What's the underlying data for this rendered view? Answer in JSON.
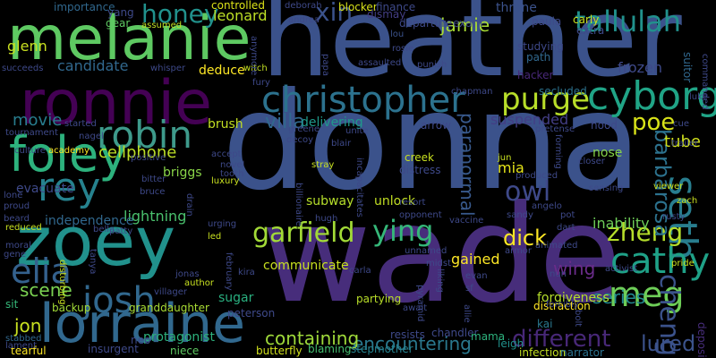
{
  "words": [
    {
      "id": "heather",
      "text": "heather",
      "color": "#3b528b"
    },
    {
      "id": "donna",
      "text": "donna",
      "color": "#3b528b"
    },
    {
      "id": "wade",
      "text": "wade",
      "color": "#472d7b"
    },
    {
      "id": "melanie",
      "text": "melanie",
      "color": "#5ec962"
    },
    {
      "id": "zoey",
      "text": "zoey",
      "color": "#21918c"
    },
    {
      "id": "ronnie",
      "text": "ronnie",
      "color": "#440154"
    },
    {
      "id": "lorraine",
      "text": "lorraine",
      "color": "#31688e"
    },
    {
      "id": "christopher",
      "text": "christopher",
      "color": "#2c728e"
    },
    {
      "id": "foley",
      "text": "foley",
      "color": "#2db27d"
    },
    {
      "id": "robin",
      "text": "robin",
      "color": "#3e9a8b"
    },
    {
      "id": "rey",
      "text": "rey",
      "color": "#26828e"
    },
    {
      "id": "cyborg",
      "text": "cyborg",
      "color": "#20a486"
    },
    {
      "id": "purge",
      "text": "purge",
      "color": "#b8de29"
    },
    {
      "id": "tallulah",
      "text": "tallulah",
      "color": "#21918c"
    },
    {
      "id": "seth",
      "text": "seth",
      "color": "#287d8e"
    },
    {
      "id": "cathy",
      "text": "cathy",
      "color": "#1fa187"
    },
    {
      "id": "meg",
      "text": "meg",
      "color": "#6ece58"
    },
    {
      "id": "cheng",
      "text": "cheng",
      "color": "#3b528b"
    },
    {
      "id": "zheng",
      "text": "zheng",
      "color": "#b5de2b"
    },
    {
      "id": "garfield",
      "text": "garfield",
      "color": "#a2da37"
    },
    {
      "id": "josh",
      "text": "josh",
      "color": "#31688e"
    },
    {
      "id": "ying",
      "text": "ying",
      "color": "#35b779"
    },
    {
      "id": "dick",
      "text": "dick",
      "color": "#fde725"
    },
    {
      "id": "different",
      "text": "different",
      "color": "#482878"
    },
    {
      "id": "honey",
      "text": "honey",
      "color": "#21918c"
    },
    {
      "id": "xin",
      "text": "xin",
      "color": "#3b528b"
    },
    {
      "id": "owl",
      "text": "owl",
      "color": "#3e4989"
    },
    {
      "id": "poe",
      "text": "poe",
      "color": "#d8e219"
    },
    {
      "id": "barbarosa",
      "text": "barbarosa",
      "color": "#2c728e"
    },
    {
      "id": "paranormal",
      "text": "paranormal",
      "color": "#38598c"
    },
    {
      "id": "jamie",
      "text": "jamie",
      "color": "#a8db34"
    },
    {
      "id": "encountering",
      "text": "encountering",
      "color": "#2a788e"
    },
    {
      "id": "containing",
      "text": "containing",
      "color": "#9fda3a"
    },
    {
      "id": "scene",
      "text": "scene",
      "color": "#7ad151"
    },
    {
      "id": "jon",
      "text": "jon",
      "color": "#c8e020"
    },
    {
      "id": "series",
      "text": "series",
      "color": "#23898e"
    },
    {
      "id": "lured",
      "text": "lured",
      "color": "#3b528b"
    },
    {
      "id": "wing",
      "text": "wing",
      "color": "#6a2c8a"
    },
    {
      "id": "elia",
      "text": "elia",
      "color": "#34618d"
    },
    {
      "id": "tube",
      "text": "tube",
      "color": "#d2e21b"
    },
    {
      "id": "candidate",
      "text": "candidate",
      "color": "#31688e"
    },
    {
      "id": "movie",
      "text": "movie",
      "color": "#287d8e"
    },
    {
      "id": "villa",
      "text": "villa",
      "color": "#31688e"
    },
    {
      "id": "suspended",
      "text": "suspended",
      "color": "#433e85"
    },
    {
      "id": "cellphone",
      "text": "cellphone",
      "color": "#bddf26"
    },
    {
      "id": "lightning",
      "text": "lightning",
      "color": "#4ac16d"
    },
    {
      "id": "subway",
      "text": "subway",
      "color": "#b5de2b"
    },
    {
      "id": "unlock",
      "text": "unlock",
      "color": "#c2df23"
    },
    {
      "id": "briggs",
      "text": "briggs",
      "color": "#89d548"
    },
    {
      "id": "evacuate",
      "text": "evacuate",
      "color": "#3e4989"
    },
    {
      "id": "independence",
      "text": "independence",
      "color": "#31688e"
    },
    {
      "id": "leonard",
      "text": "leonard",
      "color": "#bddf26"
    },
    {
      "id": "controlled",
      "text": "controlled",
      "color": "#dde318"
    },
    {
      "id": "deduce",
      "text": "deduce",
      "color": "#fde725"
    },
    {
      "id": "glenn",
      "text": "glenn",
      "color": "#c8e020"
    },
    {
      "id": "frozen",
      "text": "frozen",
      "color": "#3e4989"
    },
    {
      "id": "mia",
      "text": "mia",
      "color": "#e5e419"
    },
    {
      "id": "nose",
      "text": "nose",
      "color": "#86d549"
    },
    {
      "id": "delivering",
      "text": "delivering",
      "color": "#1f998a"
    },
    {
      "id": "brush",
      "text": "brush",
      "color": "#c2df23"
    },
    {
      "id": "inability",
      "text": "inability",
      "color": "#6ece58"
    },
    {
      "id": "communicate",
      "text": "communicate",
      "color": "#c8e020"
    },
    {
      "id": "sugar",
      "text": "sugar",
      "color": "#29af7f"
    },
    {
      "id": "backup",
      "text": "backup",
      "color": "#a2da37"
    },
    {
      "id": "granddaughter",
      "text": "granddaughter",
      "color": "#a8db34"
    },
    {
      "id": "peterson",
      "text": "peterson",
      "color": "#3e4989"
    },
    {
      "id": "partying",
      "text": "partying",
      "color": "#b8de29"
    },
    {
      "id": "gained",
      "text": "gained",
      "color": "#fde725"
    },
    {
      "id": "resists",
      "text": "resists",
      "color": "#3e4989"
    },
    {
      "id": "forgiveness",
      "text": "forgiveness",
      "color": "#b5de2b"
    },
    {
      "id": "distraction",
      "text": "distraction",
      "color": "#ffe725"
    },
    {
      "id": "protagonist",
      "text": "protagonist",
      "color": "#2db27d"
    },
    {
      "id": "butterfly",
      "text": "butterfly",
      "color": "#d0e11c"
    },
    {
      "id": "blaming",
      "text": "blaming",
      "color": "#44bf70"
    },
    {
      "id": "stepmother",
      "text": "stepmother",
      "color": "#26828e"
    },
    {
      "id": "tearful",
      "text": "tearful",
      "color": "#fde725"
    },
    {
      "id": "insurgent",
      "text": "insurgent",
      "color": "#3e4989"
    },
    {
      "id": "niece",
      "text": "niece",
      "color": "#5ec962"
    },
    {
      "id": "infection",
      "text": "infection",
      "color": "#c2df23"
    },
    {
      "id": "narrator",
      "text": "narrator",
      "color": "#2c728e"
    },
    {
      "id": "chandler",
      "text": "chandler",
      "color": "#3e4989"
    },
    {
      "id": "mama",
      "text": "mama",
      "color": "#2db27d"
    },
    {
      "id": "leigh",
      "text": "leigh",
      "color": "#21918c"
    },
    {
      "id": "kai",
      "text": "kai",
      "color": "#2a788e"
    },
    {
      "id": "deposit",
      "text": "deposit",
      "color": "#472d7b"
    },
    {
      "id": "lament",
      "text": "lament",
      "color": "#3e4989"
    },
    {
      "id": "stabbed",
      "text": "stabbed",
      "color": "#31688e"
    },
    {
      "id": "sit",
      "text": "sit",
      "color": "#35b779"
    },
    {
      "id": "neo",
      "text": "neo",
      "color": "#3e4989"
    },
    {
      "id": "importance",
      "text": "importance",
      "color": "#31688e"
    },
    {
      "id": "yang",
      "text": "yang",
      "color": "#3e4989"
    },
    {
      "id": "gear",
      "text": "gear",
      "color": "#5ec962"
    },
    {
      "id": "assumed",
      "text": "assumed",
      "color": "#c2df23"
    },
    {
      "id": "deborah",
      "text": "deborah",
      "color": "#3e4989"
    },
    {
      "id": "blocker",
      "text": "blocker",
      "color": "#d8e219"
    },
    {
      "id": "finance",
      "text": "finance",
      "color": "#3e4989"
    },
    {
      "id": "andrea",
      "text": "andrea",
      "color": "#3e4989"
    },
    {
      "id": "dismay",
      "text": "dismay",
      "color": "#433e85"
    },
    {
      "id": "throne",
      "text": "throne",
      "color": "#3b528b"
    },
    {
      "id": "lou",
      "text": "lou",
      "color": "#3b528b"
    },
    {
      "id": "paula",
      "text": "paula",
      "color": "#3e4989"
    },
    {
      "id": "carly",
      "text": "carly",
      "color": "#c8e020"
    },
    {
      "id": "rosie",
      "text": "rosie",
      "color": "#3e4989"
    },
    {
      "id": "departure",
      "text": "departure",
      "color": "#3e4989"
    },
    {
      "id": "exam",
      "text": "exam",
      "color": "#3e4989"
    },
    {
      "id": "extra",
      "text": "extra",
      "color": "#3e4989"
    },
    {
      "id": "studying",
      "text": "studying",
      "color": "#3e4989"
    },
    {
      "id": "path",
      "text": "path",
      "color": "#31688e"
    },
    {
      "id": "suitor",
      "text": "suitor",
      "color": "#31688e"
    },
    {
      "id": "commanded",
      "text": "commanded",
      "color": "#3e4989"
    },
    {
      "id": "luke",
      "text": "luke",
      "color": "#3e4989"
    },
    {
      "id": "succeeds",
      "text": "succeeds",
      "color": "#3e4989"
    },
    {
      "id": "whisper",
      "text": "whisper",
      "color": "#3e4989"
    },
    {
      "id": "witch",
      "text": "witch",
      "color": "#c2df23"
    },
    {
      "id": "papa",
      "text": "papa",
      "color": "#3e4989"
    },
    {
      "id": "assaulted",
      "text": "assaulted",
      "color": "#3e4989"
    },
    {
      "id": "punish",
      "text": "punish",
      "color": "#3e4989"
    },
    {
      "id": "hacker",
      "text": "hacker",
      "color": "#482878"
    },
    {
      "id": "secluded",
      "text": "secluded",
      "color": "#2c728e"
    },
    {
      "id": "fury",
      "text": "fury",
      "color": "#3e4989"
    },
    {
      "id": "chapman",
      "text": "chapman",
      "color": "#3e4989"
    },
    {
      "id": "started",
      "text": "started",
      "color": "#3e4989"
    },
    {
      "id": "tournament",
      "text": "tournament",
      "color": "#3e4989"
    },
    {
      "id": "nagel",
      "text": "nagel",
      "color": "#3e4989"
    },
    {
      "id": "culture",
      "text": "culture",
      "color": "#3e4989"
    },
    {
      "id": "academy",
      "text": "academy",
      "color": "#fde725"
    },
    {
      "id": "positive",
      "text": "positive",
      "color": "#3e4989"
    },
    {
      "id": "greene",
      "text": "greene",
      "color": "#3e4989"
    },
    {
      "id": "unite",
      "text": "unite",
      "color": "#3e4989"
    },
    {
      "id": "arrow",
      "text": "arrow",
      "color": "#3e4989"
    },
    {
      "id": "hood",
      "text": "hood",
      "color": "#3e4989"
    },
    {
      "id": "pretense",
      "text": "pretense",
      "color": "#3e4989"
    },
    {
      "id": "decoy",
      "text": "decoy",
      "color": "#3e4989"
    },
    {
      "id": "blair",
      "text": "blair",
      "color": "#3e4989"
    },
    {
      "id": "accept",
      "text": "accept",
      "color": "#3e4989"
    },
    {
      "id": "novel",
      "text": "novel",
      "color": "#3e4989"
    },
    {
      "id": "tooth",
      "text": "tooth",
      "color": "#3e4989"
    },
    {
      "id": "luxury",
      "text": "luxury",
      "color": "#c8e020"
    },
    {
      "id": "stray",
      "text": "stray",
      "color": "#c8e020"
    },
    {
      "id": "creek",
      "text": "creek",
      "color": "#c8e020"
    },
    {
      "id": "distress",
      "text": "distress",
      "color": "#3e4989"
    },
    {
      "id": "jun",
      "text": "jun",
      "color": "#c8e020"
    },
    {
      "id": "produced",
      "text": "produced",
      "color": "#3e4989"
    },
    {
      "id": "forming",
      "text": "forming",
      "color": "#3e4989"
    },
    {
      "id": "closer",
      "text": "closer",
      "color": "#3e4989"
    },
    {
      "id": "trailer",
      "text": "trailer",
      "color": "#3e4989"
    },
    {
      "id": "cue",
      "text": "cue",
      "color": "#3e4989"
    },
    {
      "id": "zach",
      "text": "zach",
      "color": "#c8e020"
    },
    {
      "id": "bitter",
      "text": "bitter",
      "color": "#3e4989"
    },
    {
      "id": "bruce",
      "text": "bruce",
      "color": "#3e4989"
    },
    {
      "id": "lone",
      "text": "lone",
      "color": "#3e4989"
    },
    {
      "id": "proud",
      "text": "proud",
      "color": "#3e4989"
    },
    {
      "id": "beard",
      "text": "beard",
      "color": "#3e4989"
    },
    {
      "id": "bella",
      "text": "bella",
      "color": "#3e4989"
    },
    {
      "id": "patty",
      "text": "patty",
      "color": "#3e4989"
    },
    {
      "id": "reduced",
      "text": "reduced",
      "color": "#c8e020"
    },
    {
      "id": "moral",
      "text": "moral",
      "color": "#3e4989"
    },
    {
      "id": "gene",
      "text": "gene",
      "color": "#3e4989"
    },
    {
      "id": "disturbing",
      "text": "disturbing",
      "color": "#c8e020"
    },
    {
      "id": "tanya",
      "text": "tanya",
      "color": "#3e4989"
    },
    {
      "id": "urging",
      "text": "urging",
      "color": "#3e4989"
    },
    {
      "id": "led",
      "text": "led",
      "color": "#c8e020"
    },
    {
      "id": "jonas",
      "text": "jonas",
      "color": "#3e4989"
    },
    {
      "id": "kira",
      "text": "kira",
      "color": "#3e4989"
    },
    {
      "id": "villager",
      "text": "villager",
      "color": "#3e4989"
    },
    {
      "id": "author",
      "text": "author",
      "color": "#c8e020"
    },
    {
      "id": "february",
      "text": "february",
      "color": "#3e4989"
    },
    {
      "id": "hugh",
      "text": "hugh",
      "color": "#3e4989"
    },
    {
      "id": "billionaire",
      "text": "billionaire",
      "color": "#3e4989"
    },
    {
      "id": "incapacitates",
      "text": "incapacitates",
      "color": "#3e4989"
    },
    {
      "id": "resort",
      "text": "resort",
      "color": "#3e4989"
    },
    {
      "id": "opponent",
      "text": "opponent",
      "color": "#3e4989"
    },
    {
      "id": "vaccine",
      "text": "vaccine",
      "color": "#3e4989"
    },
    {
      "id": "angelo",
      "text": "angelo",
      "color": "#3e4989"
    },
    {
      "id": "sandy",
      "text": "sandy",
      "color": "#3e4989"
    },
    {
      "id": "pot",
      "text": "pot",
      "color": "#3e4989"
    },
    {
      "id": "sensing",
      "text": "sensing",
      "color": "#3e4989"
    },
    {
      "id": "viewer",
      "text": "viewer",
      "color": "#c8e020"
    },
    {
      "id": "rusty",
      "text": "rusty",
      "color": "#3e4989"
    },
    {
      "id": "dart",
      "text": "dart",
      "color": "#3e4989"
    },
    {
      "id": "activist",
      "text": "activist",
      "color": "#3e4989"
    },
    {
      "id": "pride",
      "text": "pride",
      "color": "#c8e020"
    },
    {
      "id": "animated",
      "text": "animated",
      "color": "#3e4989"
    },
    {
      "id": "armor",
      "text": "armor",
      "color": "#3e4989"
    },
    {
      "id": "unnamed",
      "text": "unnamed",
      "color": "#3e4989"
    },
    {
      "id": "midst",
      "text": "midst",
      "color": "#3e4989"
    },
    {
      "id": "carla",
      "text": "carla",
      "color": "#3e4989"
    },
    {
      "id": "drain",
      "text": "drain",
      "color": "#3e4989"
    },
    {
      "id": "liking",
      "text": "liking",
      "color": "#3e4989"
    },
    {
      "id": "evan",
      "text": "evan",
      "color": "#3e4989"
    },
    {
      "id": "sf",
      "text": "sf",
      "color": "#3e4989"
    },
    {
      "id": "nun",
      "text": "nun",
      "color": "#3e4989"
    },
    {
      "id": "forcibly",
      "text": "forcibly",
      "color": "#3e4989"
    },
    {
      "id": "allie",
      "text": "allie",
      "color": "#3e4989"
    },
    {
      "id": "pyramid",
      "text": "pyramid",
      "color": "#3e4989"
    },
    {
      "id": "await",
      "text": "await",
      "color": "#3e4989"
    },
    {
      "id": "bolt",
      "text": "bolt",
      "color": "#3e4989"
    },
    {
      "id": "anymore",
      "text": "anymore",
      "color": "#3e4989"
    }
  ]
}
